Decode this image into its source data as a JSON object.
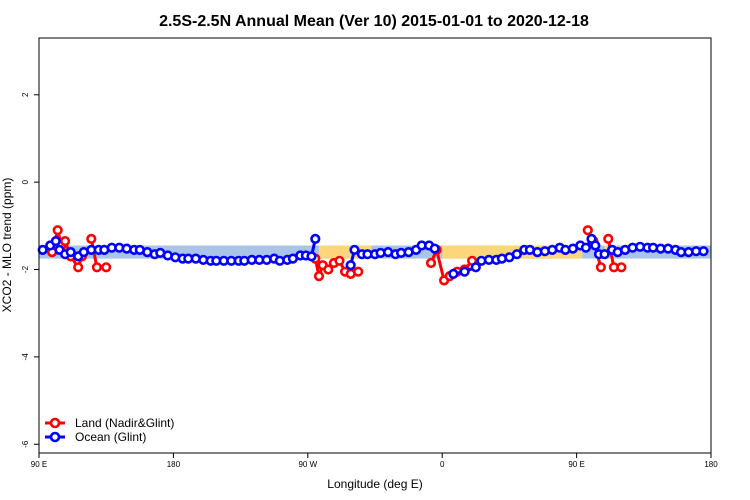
{
  "chart_data": {
    "type": "line",
    "title": "2.5S-2.5N Annual Mean (Ver 10)   2015-01-01 to 2020-12-18",
    "xlabel": "Longitude (deg E)",
    "ylabel": "XCO2 - MLO trend (ppm)",
    "xlim": [
      90,
      450
    ],
    "ylim": [
      -6.2,
      3.3
    ],
    "x_ticks": [
      90,
      162,
      234,
      306,
      378,
      450
    ],
    "x_tick_labels": [
      "90 E",
      "180",
      "90 W",
      "0",
      "90 E",
      "180"
    ],
    "y_ticks": [
      -6,
      -4,
      -2,
      0,
      2
    ],
    "y_tick_labels": [
      "-6",
      "-4",
      "-2",
      "0",
      "2"
    ],
    "band": {
      "low": -1.75,
      "high": -1.45,
      "ocean_color": "#a9c4e8",
      "land_color": "#fbd67a"
    },
    "land_band_ranges": [
      [
        240,
        268
      ],
      [
        306,
        381
      ],
      [
        393,
        395
      ]
    ],
    "series": [
      {
        "name": "Land (Nadir&Glint)",
        "color": "#ff0000",
        "segments": [
          [
            [
              97,
              -1.6
            ],
            [
              100,
              -1.1
            ],
            [
              102,
              -1.45
            ],
            [
              104,
              -1.35
            ],
            [
              107,
              -1.7
            ],
            [
              111,
              -1.95
            ],
            [
              113,
              -1.7
            ]
          ],
          [
            [
              118,
              -1.3
            ],
            [
              121,
              -1.95
            ],
            [
              126,
              -1.95
            ]
          ],
          [
            [
              238,
              -1.75
            ],
            [
              240,
              -2.15
            ],
            [
              242,
              -1.9
            ],
            [
              245,
              -2
            ],
            [
              248,
              -1.85
            ],
            [
              251,
              -1.8
            ],
            [
              254,
              -2.05
            ],
            [
              257,
              -2.1
            ],
            [
              261,
              -2.05
            ]
          ],
          [
            [
              300,
              -1.85
            ],
            [
              303,
              -1.55
            ],
            [
              307,
              -2.25
            ],
            [
              310,
              -2.15
            ],
            [
              314,
              -2.05
            ],
            [
              318,
              -2
            ],
            [
              322,
              -1.8
            ]
          ],
          [
            [
              384,
              -1.1
            ],
            [
              387,
              -1.35
            ],
            [
              391,
              -1.95
            ]
          ],
          [
            [
              395,
              -1.3
            ],
            [
              398,
              -1.95
            ],
            [
              402,
              -1.95
            ]
          ]
        ]
      },
      {
        "name": "Ocean (Glint)",
        "color": "#0000ff",
        "segments": [
          [
            [
              92,
              -1.55
            ],
            [
              96,
              -1.45
            ],
            [
              99,
              -1.35
            ],
            [
              101,
              -1.55
            ],
            [
              104,
              -1.65
            ],
            [
              107,
              -1.6
            ],
            [
              111,
              -1.7
            ],
            [
              114,
              -1.6
            ],
            [
              118,
              -1.55
            ],
            [
              122,
              -1.55
            ],
            [
              125,
              -1.55
            ],
            [
              129,
              -1.5
            ],
            [
              133,
              -1.5
            ],
            [
              137,
              -1.52
            ],
            [
              141,
              -1.55
            ],
            [
              144,
              -1.55
            ],
            [
              148,
              -1.6
            ],
            [
              152,
              -1.65
            ],
            [
              155,
              -1.62
            ],
            [
              159,
              -1.68
            ],
            [
              163,
              -1.72
            ],
            [
              167,
              -1.75
            ],
            [
              170,
              -1.75
            ],
            [
              174,
              -1.75
            ],
            [
              178,
              -1.78
            ],
            [
              182,
              -1.8
            ],
            [
              185,
              -1.8
            ],
            [
              189,
              -1.8
            ],
            [
              193,
              -1.8
            ],
            [
              197,
              -1.8
            ],
            [
              200,
              -1.8
            ],
            [
              204,
              -1.78
            ],
            [
              208,
              -1.78
            ],
            [
              212,
              -1.78
            ],
            [
              216,
              -1.75
            ],
            [
              219,
              -1.8
            ],
            [
              223,
              -1.78
            ],
            [
              226,
              -1.75
            ],
            [
              230,
              -1.68
            ],
            [
              233,
              -1.68
            ],
            [
              236,
              -1.7
            ],
            [
              238,
              -1.3
            ]
          ],
          [
            [
              257,
              -1.9
            ],
            [
              259,
              -1.55
            ],
            [
              263,
              -1.65
            ],
            [
              266,
              -1.65
            ],
            [
              270,
              -1.65
            ],
            [
              273,
              -1.62
            ],
            [
              277,
              -1.6
            ],
            [
              281,
              -1.65
            ],
            [
              284,
              -1.62
            ],
            [
              288,
              -1.6
            ],
            [
              292,
              -1.55
            ],
            [
              295,
              -1.45
            ],
            [
              299,
              -1.45
            ],
            [
              302,
              -1.52
            ]
          ],
          [
            [
              312,
              -2.1
            ],
            [
              318,
              -2.05
            ],
            [
              324,
              -1.95
            ],
            [
              327,
              -1.8
            ],
            [
              331,
              -1.78
            ],
            [
              335,
              -1.78
            ],
            [
              338,
              -1.75
            ],
            [
              342,
              -1.72
            ],
            [
              346,
              -1.65
            ],
            [
              350,
              -1.55
            ],
            [
              353,
              -1.55
            ],
            [
              357,
              -1.6
            ],
            [
              361,
              -1.58
            ],
            [
              365,
              -1.55
            ],
            [
              369,
              -1.5
            ],
            [
              372,
              -1.55
            ],
            [
              376,
              -1.52
            ],
            [
              380,
              -1.45
            ],
            [
              383,
              -1.5
            ],
            [
              386,
              -1.3
            ],
            [
              388,
              -1.45
            ],
            [
              390,
              -1.65
            ],
            [
              393,
              -1.65
            ],
            [
              397,
              -1.55
            ],
            [
              400,
              -1.6
            ],
            [
              404,
              -1.55
            ],
            [
              408,
              -1.5
            ],
            [
              412,
              -1.48
            ],
            [
              416,
              -1.5
            ],
            [
              419,
              -1.5
            ],
            [
              423,
              -1.52
            ],
            [
              427,
              -1.52
            ],
            [
              431,
              -1.55
            ],
            [
              434,
              -1.6
            ],
            [
              438,
              -1.6
            ],
            [
              442,
              -1.58
            ],
            [
              446,
              -1.58
            ]
          ]
        ]
      }
    ],
    "legend": [
      "Land (Nadir&Glint)",
      "Ocean (Glint)"
    ],
    "legend_position": "bottom-left"
  }
}
